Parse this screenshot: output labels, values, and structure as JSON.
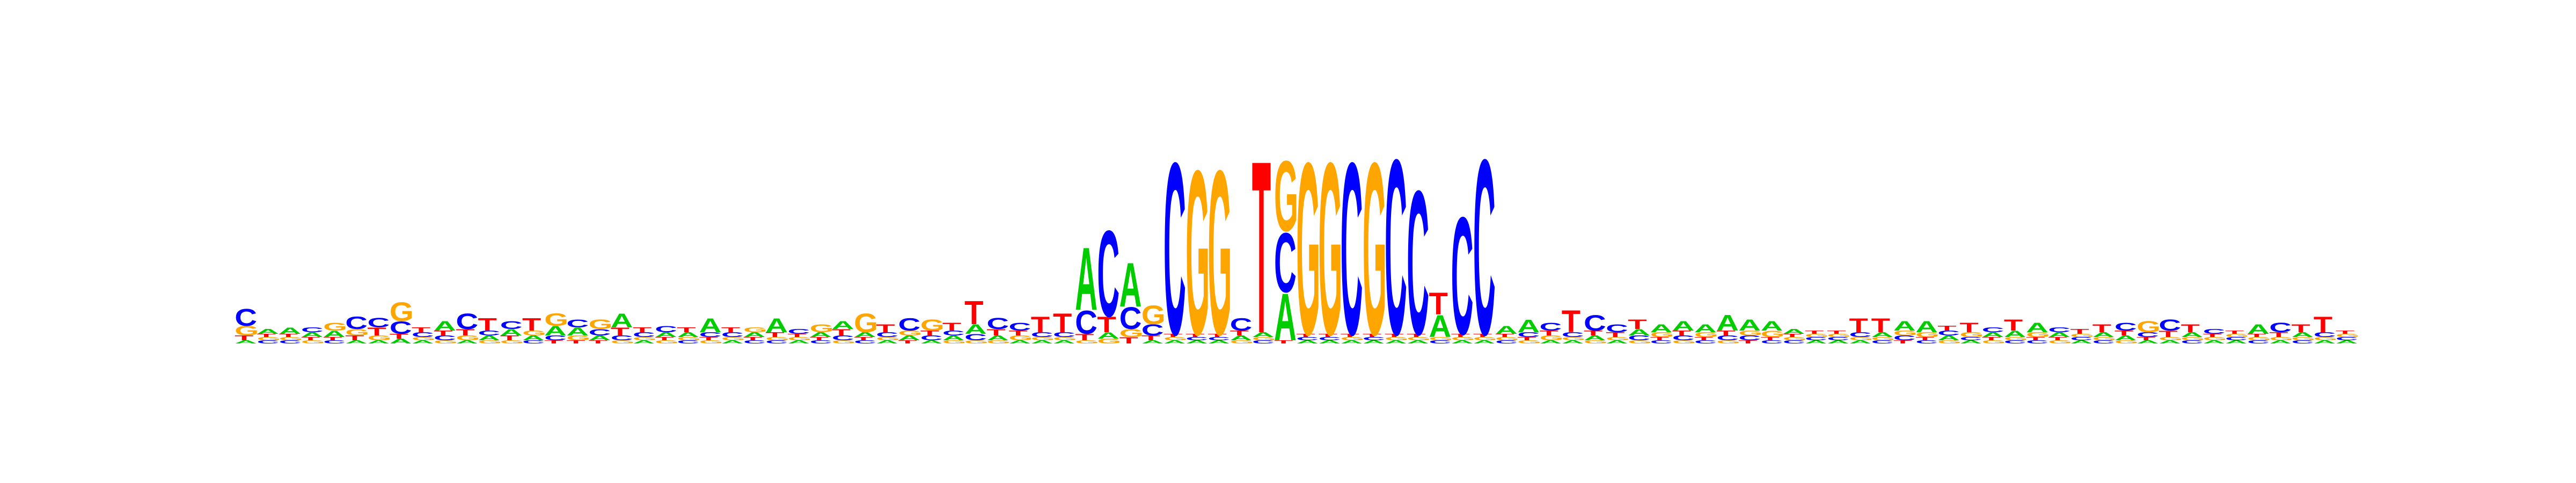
{
  "chart_data": {
    "type": "sequence-logo",
    "alphabet": [
      "A",
      "C",
      "G",
      "T"
    ],
    "colors": {
      "A": "#00cc00",
      "C": "#0000ff",
      "G": "#ffa500",
      "T": "#ff0000"
    },
    "ylim": [
      0,
      2
    ],
    "positions": [
      {
        "A": 0.02,
        "C": 0.11,
        "G": 0.06,
        "T": 0.03
      },
      {
        "A": 0.03,
        "C": 0.02,
        "G": 0.02,
        "T": 0.02
      },
      {
        "A": 0.04,
        "C": 0.02,
        "G": 0.02,
        "T": 0.02
      },
      {
        "A": 0.03,
        "C": 0.03,
        "G": 0.02,
        "T": 0.02
      },
      {
        "A": 0.04,
        "C": 0.02,
        "G": 0.05,
        "T": 0.02
      },
      {
        "A": 0.02,
        "C": 0.08,
        "G": 0.04,
        "T": 0.03
      },
      {
        "A": 0.02,
        "C": 0.06,
        "G": 0.03,
        "T": 0.05
      },
      {
        "A": 0.03,
        "C": 0.08,
        "G": 0.12,
        "T": 0.03
      },
      {
        "A": 0.02,
        "C": 0.03,
        "G": 0.02,
        "T": 0.03
      },
      {
        "A": 0.06,
        "C": 0.03,
        "G": 0.02,
        "T": 0.03
      },
      {
        "A": 0.02,
        "C": 0.1,
        "G": 0.03,
        "T": 0.04
      },
      {
        "A": 0.03,
        "C": 0.03,
        "G": 0.02,
        "T": 0.08
      },
      {
        "A": 0.04,
        "C": 0.05,
        "G": 0.02,
        "T": 0.03
      },
      {
        "A": 0.03,
        "C": 0.02,
        "G": 0.03,
        "T": 0.08
      },
      {
        "A": 0.06,
        "C": 0.03,
        "G": 0.08,
        "T": 0.02
      },
      {
        "A": 0.05,
        "C": 0.05,
        "G": 0.03,
        "T": 0.02
      },
      {
        "A": 0.03,
        "C": 0.04,
        "G": 0.06,
        "T": 0.02
      },
      {
        "A": 0.09,
        "C": 0.03,
        "G": 0.02,
        "T": 0.05
      },
      {
        "A": 0.02,
        "C": 0.03,
        "G": 0.02,
        "T": 0.03
      },
      {
        "A": 0.03,
        "C": 0.04,
        "G": 0.02,
        "T": 0.02
      },
      {
        "A": 0.03,
        "C": 0.02,
        "G": 0.02,
        "T": 0.03
      },
      {
        "A": 0.09,
        "C": 0.03,
        "G": 0.02,
        "T": 0.02
      },
      {
        "A": 0.02,
        "C": 0.03,
        "G": 0.02,
        "T": 0.03
      },
      {
        "A": 0.03,
        "C": 0.02,
        "G": 0.03,
        "T": 0.02
      },
      {
        "A": 0.09,
        "C": 0.02,
        "G": 0.02,
        "T": 0.03
      },
      {
        "A": 0.02,
        "C": 0.03,
        "G": 0.02,
        "T": 0.02
      },
      {
        "A": 0.03,
        "C": 0.02,
        "G": 0.05,
        "T": 0.02
      },
      {
        "A": 0.05,
        "C": 0.03,
        "G": 0.02,
        "T": 0.04
      },
      {
        "A": 0.03,
        "C": 0.02,
        "G": 0.12,
        "T": 0.02
      },
      {
        "A": 0.02,
        "C": 0.03,
        "G": 0.02,
        "T": 0.05
      },
      {
        "A": 0.03,
        "C": 0.08,
        "G": 0.03,
        "T": 0.02
      },
      {
        "A": 0.02,
        "C": 0.03,
        "G": 0.07,
        "T": 0.03
      },
      {
        "A": 0.03,
        "C": 0.03,
        "G": 0.02,
        "T": 0.05
      },
      {
        "A": 0.06,
        "C": 0.04,
        "G": 0.02,
        "T": 0.15
      },
      {
        "A": 0.03,
        "C": 0.07,
        "G": 0.02,
        "T": 0.04
      },
      {
        "A": 0.02,
        "C": 0.05,
        "G": 0.03,
        "T": 0.03
      },
      {
        "A": 0.02,
        "C": 0.03,
        "G": 0.02,
        "T": 0.1
      },
      {
        "A": 0.02,
        "C": 0.03,
        "G": 0.02,
        "T": 0.12
      },
      {
        "A": 0.4,
        "C": 0.15,
        "G": 0.02,
        "T": 0.04
      },
      {
        "A": 0.04,
        "C": 0.55,
        "G": 0.03,
        "T": 0.1
      },
      {
        "A": 0.28,
        "C": 0.14,
        "G": 0.05,
        "T": 0.04
      },
      {
        "A": 0.02,
        "C": 0.07,
        "G": 0.12,
        "T": 0.03
      },
      {
        "A": 0.02,
        "C": 1.1,
        "G": 0.02,
        "T": 0.02
      },
      {
        "A": 0.02,
        "C": 0.02,
        "G": 1.05,
        "T": 0.02
      },
      {
        "A": 0.02,
        "C": 0.02,
        "G": 1.05,
        "T": 0.02
      },
      {
        "A": 0.03,
        "C": 0.08,
        "G": 0.02,
        "T": 0.03
      },
      {
        "A": 0.03,
        "C": 0.02,
        "G": 0.02,
        "T": 1.1
      },
      {
        "A": 0.3,
        "C": 0.38,
        "G": 0.45,
        "T": 0.02
      },
      {
        "A": 0.02,
        "C": 0.02,
        "G": 1.1,
        "T": 0.02
      },
      {
        "A": 0.02,
        "C": 0.02,
        "G": 1.1,
        "T": 0.02
      },
      {
        "A": 0.02,
        "C": 1.1,
        "G": 0.02,
        "T": 0.02
      },
      {
        "A": 0.02,
        "C": 0.02,
        "G": 1.1,
        "T": 0.02
      },
      {
        "A": 0.02,
        "C": 1.12,
        "G": 0.02,
        "T": 0.02
      },
      {
        "A": 0.02,
        "C": 0.92,
        "G": 0.02,
        "T": 0.02
      },
      {
        "A": 0.14,
        "C": 0.02,
        "G": 0.02,
        "T": 0.14
      },
      {
        "A": 0.02,
        "C": 0.75,
        "G": 0.02,
        "T": 0.02
      },
      {
        "A": 0.02,
        "C": 1.12,
        "G": 0.02,
        "T": 0.02
      },
      {
        "A": 0.05,
        "C": 0.02,
        "G": 0.02,
        "T": 0.02
      },
      {
        "A": 0.08,
        "C": 0.03,
        "G": 0.02,
        "T": 0.02
      },
      {
        "A": 0.02,
        "C": 0.05,
        "G": 0.03,
        "T": 0.03
      },
      {
        "A": 0.02,
        "C": 0.03,
        "G": 0.02,
        "T": 0.14
      },
      {
        "A": 0.03,
        "C": 0.1,
        "G": 0.02,
        "T": 0.03
      },
      {
        "A": 0.02,
        "C": 0.05,
        "G": 0.02,
        "T": 0.03
      },
      {
        "A": 0.04,
        "C": 0.03,
        "G": 0.02,
        "T": 0.06
      },
      {
        "A": 0.05,
        "C": 0.02,
        "G": 0.03,
        "T": 0.02
      },
      {
        "A": 0.06,
        "C": 0.03,
        "G": 0.02,
        "T": 0.03
      },
      {
        "A": 0.05,
        "C": 0.02,
        "G": 0.03,
        "T": 0.02
      },
      {
        "A": 0.1,
        "C": 0.03,
        "G": 0.02,
        "T": 0.03
      },
      {
        "A": 0.07,
        "C": 0.03,
        "G": 0.03,
        "T": 0.02
      },
      {
        "A": 0.06,
        "C": 0.02,
        "G": 0.04,
        "T": 0.02
      },
      {
        "A": 0.03,
        "C": 0.02,
        "G": 0.02,
        "T": 0.02
      },
      {
        "A": 0.02,
        "C": 0.02,
        "G": 0.02,
        "T": 0.02
      },
      {
        "A": 0.02,
        "C": 0.02,
        "G": 0.02,
        "T": 0.02
      },
      {
        "A": 0.02,
        "C": 0.03,
        "G": 0.02,
        "T": 0.09
      },
      {
        "A": 0.03,
        "C": 0.02,
        "G": 0.02,
        "T": 0.09
      },
      {
        "A": 0.06,
        "C": 0.03,
        "G": 0.03,
        "T": 0.02
      },
      {
        "A": 0.07,
        "C": 0.02,
        "G": 0.03,
        "T": 0.02
      },
      {
        "A": 0.03,
        "C": 0.03,
        "G": 0.02,
        "T": 0.03
      },
      {
        "A": 0.02,
        "C": 0.02,
        "G": 0.03,
        "T": 0.06
      },
      {
        "A": 0.03,
        "C": 0.03,
        "G": 0.02,
        "T": 0.02
      },
      {
        "A": 0.04,
        "C": 0.02,
        "G": 0.02,
        "T": 0.07
      },
      {
        "A": 0.06,
        "C": 0.02,
        "G": 0.03,
        "T": 0.02
      },
      {
        "A": 0.03,
        "C": 0.03,
        "G": 0.02,
        "T": 0.02
      },
      {
        "A": 0.02,
        "C": 0.02,
        "G": 0.02,
        "T": 0.03
      },
      {
        "A": 0.03,
        "C": 0.02,
        "G": 0.02,
        "T": 0.05
      },
      {
        "A": 0.03,
        "C": 0.05,
        "G": 0.02,
        "T": 0.03
      },
      {
        "A": 0.02,
        "C": 0.03,
        "G": 0.07,
        "T": 0.02
      },
      {
        "A": 0.02,
        "C": 0.07,
        "G": 0.02,
        "T": 0.04
      },
      {
        "A": 0.03,
        "C": 0.02,
        "G": 0.02,
        "T": 0.05
      },
      {
        "A": 0.02,
        "C": 0.03,
        "G": 0.02,
        "T": 0.02
      },
      {
        "A": 0.02,
        "C": 0.02,
        "G": 0.02,
        "T": 0.02
      },
      {
        "A": 0.06,
        "C": 0.02,
        "G": 0.02,
        "T": 0.02
      },
      {
        "A": 0.02,
        "C": 0.06,
        "G": 0.02,
        "T": 0.03
      },
      {
        "A": 0.03,
        "C": 0.02,
        "G": 0.02,
        "T": 0.05
      },
      {
        "A": 0.02,
        "C": 0.03,
        "G": 0.02,
        "T": 0.1
      },
      {
        "A": 0.02,
        "C": 0.02,
        "G": 0.02,
        "T": 0.02
      }
    ]
  }
}
